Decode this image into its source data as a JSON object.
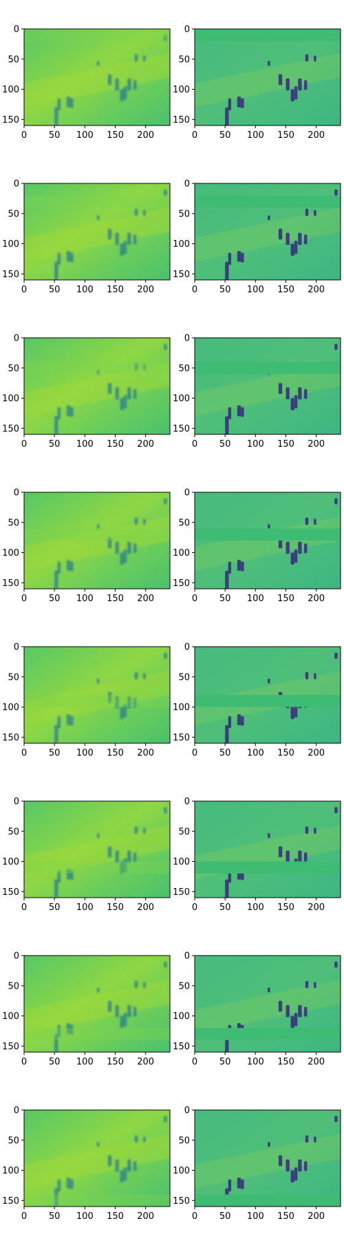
{
  "figure": {
    "rows": 8,
    "cols": 2,
    "colormap": "viridis",
    "background": "#ffffff"
  },
  "axes": {
    "x_ticks": [
      0,
      50,
      100,
      150,
      200
    ],
    "y_ticks": [
      0,
      50,
      100,
      150
    ],
    "x_range": [
      0,
      240
    ],
    "y_range": [
      0,
      160
    ]
  },
  "panels": [
    {
      "row": 1,
      "left": {
        "type": "reconstruction",
        "masked_band": [
          0,
          20
        ]
      },
      "right": {
        "type": "masked-input",
        "masked_band": [
          0,
          20
        ]
      }
    },
    {
      "row": 2,
      "left": {
        "type": "reconstruction",
        "masked_band": [
          20,
          40
        ]
      },
      "right": {
        "type": "masked-input",
        "masked_band": [
          20,
          40
        ]
      }
    },
    {
      "row": 3,
      "left": {
        "type": "reconstruction",
        "masked_band": [
          40,
          60
        ]
      },
      "right": {
        "type": "masked-input",
        "masked_band": [
          40,
          60
        ]
      }
    },
    {
      "row": 4,
      "left": {
        "type": "reconstruction",
        "masked_band": [
          60,
          80
        ]
      },
      "right": {
        "type": "masked-input",
        "masked_band": [
          60,
          80
        ]
      }
    },
    {
      "row": 5,
      "left": {
        "type": "reconstruction",
        "masked_band": [
          80,
          100
        ]
      },
      "right": {
        "type": "masked-input",
        "masked_band": [
          80,
          100
        ]
      }
    },
    {
      "row": 6,
      "left": {
        "type": "reconstruction",
        "masked_band": [
          100,
          120
        ]
      },
      "right": {
        "type": "masked-input",
        "masked_band": [
          100,
          120
        ]
      }
    },
    {
      "row": 7,
      "left": {
        "type": "reconstruction",
        "masked_band": [
          120,
          140
        ]
      },
      "right": {
        "type": "masked-input",
        "masked_band": [
          120,
          140
        ]
      }
    },
    {
      "row": 8,
      "left": {
        "type": "reconstruction",
        "masked_band": [
          140,
          160
        ]
      },
      "right": {
        "type": "masked-input",
        "masked_band": [
          140,
          160
        ]
      }
    }
  ],
  "colors": {
    "mask_fill": "#3fbc73",
    "field_light": "#9ed93a",
    "field_mid": "#6ccd5a",
    "people_dark": "#3b2f80",
    "people_mid": "#2a7b8e"
  }
}
